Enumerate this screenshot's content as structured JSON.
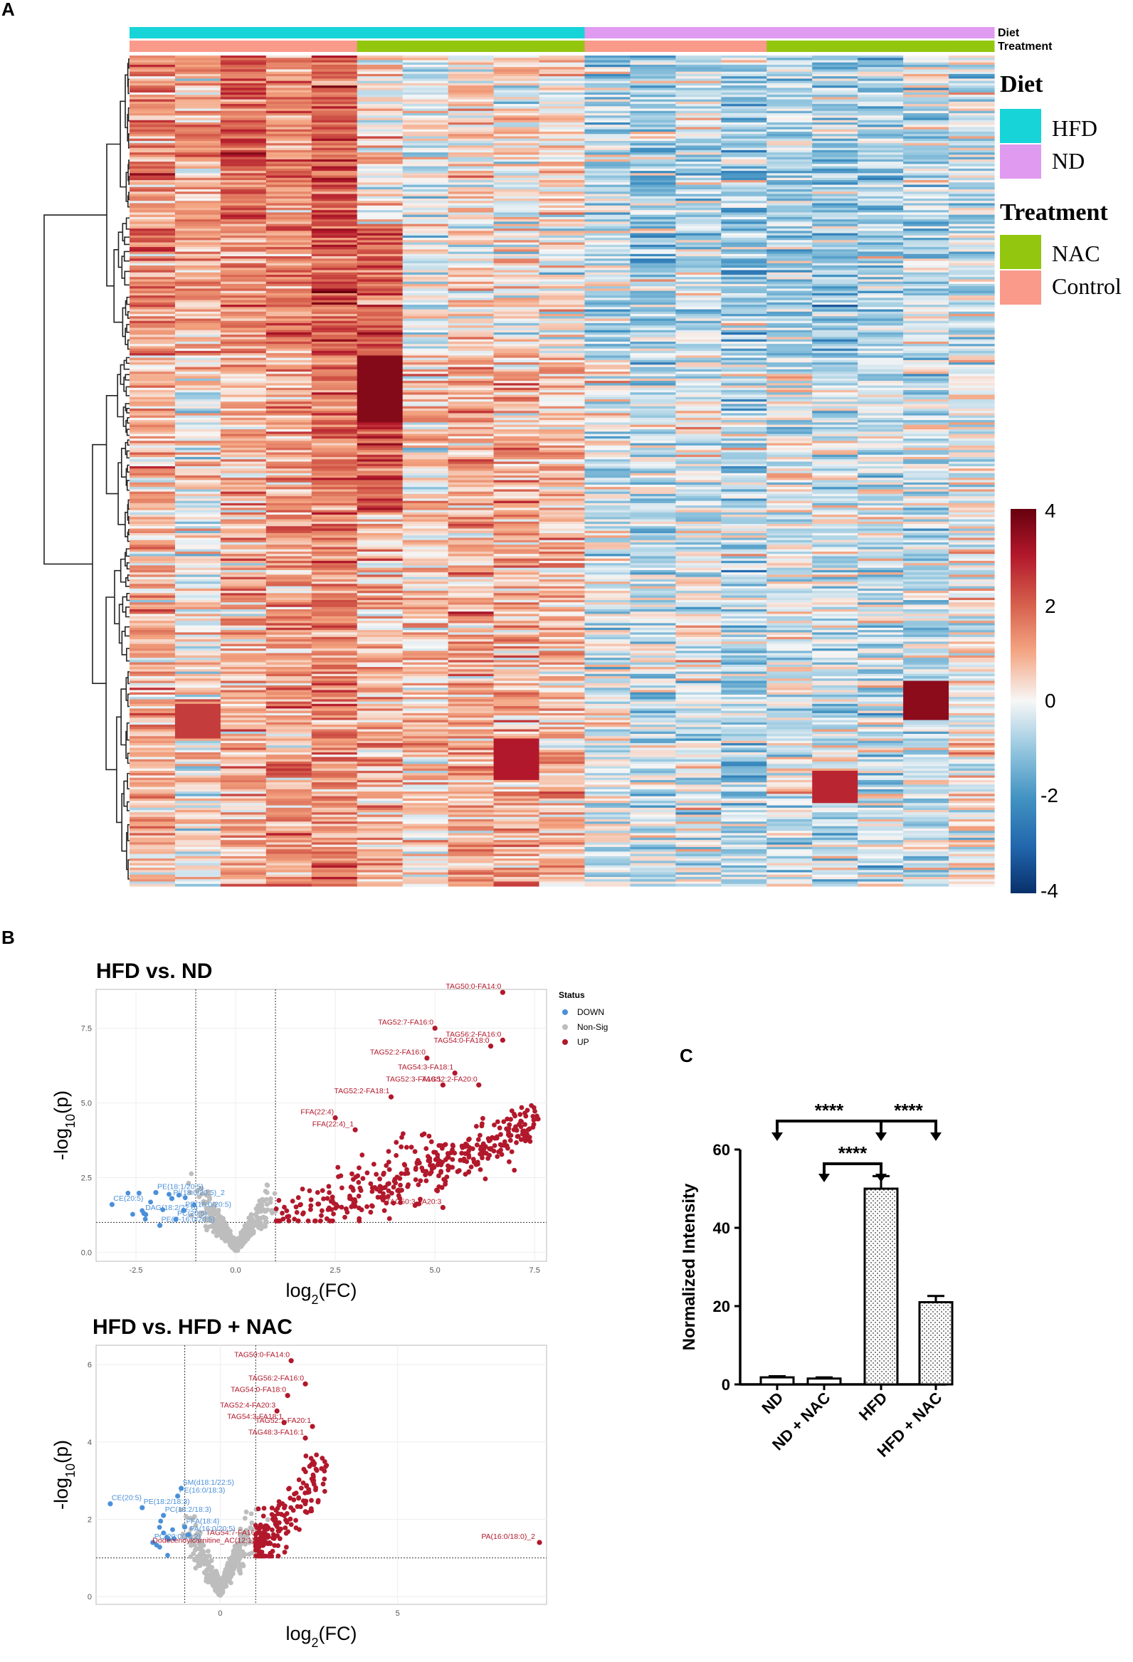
{
  "panels": {
    "a": "A",
    "b": "B",
    "c": "C"
  },
  "heatmap": {
    "annotation_rows": [
      "Diet",
      "Treatment"
    ],
    "legend": {
      "diet_title": "Diet",
      "diet_items": [
        {
          "label": "HFD",
          "color": "#17d4d8"
        },
        {
          "label": "ND",
          "color": "#e09af0"
        }
      ],
      "treatment_title": "Treatment",
      "treatment_items": [
        {
          "label": "NAC",
          "color": "#93c60f"
        },
        {
          "label": "Control",
          "color": "#f99a8a"
        }
      ]
    },
    "colorbar_ticks": [
      "4",
      "2",
      "0",
      "-2",
      "-4"
    ],
    "colors": {
      "low": "#08306b",
      "mid": "#f7f7f7",
      "high": "#67000d",
      "hfd": "#17d4d8",
      "nd": "#e09af0",
      "nac": "#93c60f",
      "control": "#f99a8a"
    }
  },
  "chart_data": [
    {
      "type": "heatmap",
      "title": "",
      "columns": 19,
      "column_groups": [
        {
          "diet": "HFD",
          "treatment": "Control",
          "n": 5
        },
        {
          "diet": "HFD",
          "treatment": "NAC",
          "n": 5
        },
        {
          "diet": "ND",
          "treatment": "Control",
          "n": 4
        },
        {
          "diet": "ND",
          "treatment": "NAC",
          "n": 5
        }
      ],
      "color_scale": [
        -4,
        4
      ],
      "row_dendrogram": true
    },
    {
      "type": "scatter",
      "title": "HFD vs. ND",
      "xlabel": "log2(FC)",
      "ylabel": "-log10(p)",
      "xlim": [
        -3.5,
        7.8
      ],
      "ylim": [
        -0.3,
        8.8
      ],
      "xticks": [
        "-2.5",
        "0.0",
        "2.5",
        "5.0",
        "7.5"
      ],
      "yticks": [
        "0.0",
        "2.5",
        "5.0",
        "7.5"
      ],
      "fc_threshold": [
        -1,
        1
      ],
      "p_threshold": 1.0,
      "legend_title": "Status",
      "legend": [
        "DOWN",
        "Non-Sig",
        "UP"
      ],
      "labeled_points": [
        {
          "label": "TAG50:0-FA14:0",
          "x": 6.7,
          "y": 8.7,
          "status": "UP"
        },
        {
          "label": "TAG52:7-FA16:0",
          "x": 5.0,
          "y": 7.5,
          "status": "UP"
        },
        {
          "label": "TAG56:2-FA16:0",
          "x": 6.7,
          "y": 7.1,
          "status": "UP"
        },
        {
          "label": "TAG54:0-FA18:0",
          "x": 6.4,
          "y": 6.9,
          "status": "UP"
        },
        {
          "label": "TAG52:2-FA16:0",
          "x": 4.8,
          "y": 6.5,
          "status": "UP"
        },
        {
          "label": "TAG54:3-FA18:1",
          "x": 5.5,
          "y": 6.0,
          "status": "UP"
        },
        {
          "label": "TAG52:3-FA18:1",
          "x": 5.2,
          "y": 5.6,
          "status": "UP"
        },
        {
          "label": "TAG52:2-FA20:0",
          "x": 6.1,
          "y": 5.6,
          "status": "UP"
        },
        {
          "label": "TAG52:2-FA18:1",
          "x": 3.9,
          "y": 5.2,
          "status": "UP"
        },
        {
          "label": "FFA(22:4)",
          "x": 2.5,
          "y": 4.5,
          "status": "UP"
        },
        {
          "label": "FFA(22:4)_1",
          "x": 3.0,
          "y": 4.1,
          "status": "UP"
        },
        {
          "label": "TAG50:3-FA20:3",
          "x": 5.2,
          "y": 1.5,
          "status": "UP"
        },
        {
          "label": "PE(18:1/20:5)",
          "x": -2.0,
          "y": 2.0,
          "status": "DOWN"
        },
        {
          "label": "CE(20:5)",
          "x": -3.1,
          "y": 1.6,
          "status": "DOWN"
        },
        {
          "label": "PI(18:0/20:5)_2",
          "x": -1.6,
          "y": 1.8,
          "status": "DOWN"
        },
        {
          "label": "PE(18:0/20:5)",
          "x": -1.3,
          "y": 1.4,
          "status": "DOWN"
        },
        {
          "label": "DAG(18:2/22:6)",
          "x": -2.3,
          "y": 1.3,
          "status": "DOWN"
        },
        {
          "label": "PC(20:5)",
          "x": -1.5,
          "y": 1.1,
          "status": "DOWN"
        },
        {
          "label": "PE(P-16:0/20:5)",
          "x": -1.9,
          "y": 0.9,
          "status": "DOWN"
        }
      ]
    },
    {
      "type": "scatter",
      "title": "HFD vs. HFD + NAC",
      "xlabel": "log2(FC)",
      "ylabel": "-log10(p)",
      "xlim": [
        -3.5,
        9.2
      ],
      "ylim": [
        -0.2,
        6.5
      ],
      "xticks": [
        "0",
        "5"
      ],
      "yticks": [
        "0",
        "2",
        "4",
        "6"
      ],
      "fc_threshold": [
        -1,
        1
      ],
      "p_threshold": 1.0,
      "labeled_points": [
        {
          "label": "TAG50:0-FA14:0",
          "x": 2.0,
          "y": 6.1,
          "status": "UP"
        },
        {
          "label": "TAG56:2-FA16:0",
          "x": 2.4,
          "y": 5.5,
          "status": "UP"
        },
        {
          "label": "TAG54:0-FA18:0",
          "x": 1.9,
          "y": 5.2,
          "status": "UP"
        },
        {
          "label": "TAG52:4-FA20:3",
          "x": 1.6,
          "y": 4.8,
          "status": "UP"
        },
        {
          "label": "TAG54:3-FA18:1",
          "x": 1.8,
          "y": 4.5,
          "status": "UP"
        },
        {
          "label": "TAG52:1-FA20:1",
          "x": 2.6,
          "y": 4.4,
          "status": "UP"
        },
        {
          "label": "TAG48:3-FA16:1",
          "x": 2.4,
          "y": 4.1,
          "status": "UP"
        },
        {
          "label": "TAG54:7-FA16:1",
          "x": 1.2,
          "y": 1.5,
          "status": "UP"
        },
        {
          "label": "Dodecenoylcarnitine_AC(12:1)",
          "x": 1.0,
          "y": 1.3,
          "status": "UP"
        },
        {
          "label": "PA(16:0/18:0)_2",
          "x": 9.0,
          "y": 1.4,
          "status": "UP"
        },
        {
          "label": "SM(d18:1/22:5)",
          "x": -1.1,
          "y": 2.8,
          "status": "DOWN"
        },
        {
          "label": "CE(20:5)",
          "x": -3.1,
          "y": 2.4,
          "status": "DOWN"
        },
        {
          "label": "PE(16:0/18:3)",
          "x": -1.2,
          "y": 2.6,
          "status": "DOWN"
        },
        {
          "label": "PE(18:2/18:3)",
          "x": -2.2,
          "y": 2.3,
          "status": "DOWN"
        },
        {
          "label": "PC(18:2/18:3)",
          "x": -1.6,
          "y": 2.1,
          "status": "DOWN"
        },
        {
          "label": "FFA(18:4)",
          "x": -1.0,
          "y": 1.8,
          "status": "DOWN"
        },
        {
          "label": "PA(16:0/20:5)",
          "x": -0.9,
          "y": 1.6,
          "status": "DOWN"
        },
        {
          "label": "PC(20:0/18:2)",
          "x": -1.9,
          "y": 1.4,
          "status": "DOWN"
        }
      ]
    },
    {
      "type": "bar",
      "title": "",
      "categories": [
        "ND",
        "ND + NAC",
        "HFD",
        "HFD + NAC"
      ],
      "values": [
        1.8,
        1.5,
        50,
        21
      ],
      "errors": [
        0.3,
        0.3,
        3.2,
        1.6
      ],
      "ylabel": "Normalized Intensity",
      "xlabel": "",
      "ylim": [
        0,
        60
      ],
      "yticks": [
        "0",
        "20",
        "40",
        "60"
      ],
      "significance": [
        {
          "from": "ND",
          "to": "HFD",
          "label": "****"
        },
        {
          "from": "ND + NAC",
          "to": "HFD",
          "label": "****"
        },
        {
          "from": "HFD",
          "to": "HFD + NAC",
          "label": "****"
        }
      ]
    }
  ]
}
